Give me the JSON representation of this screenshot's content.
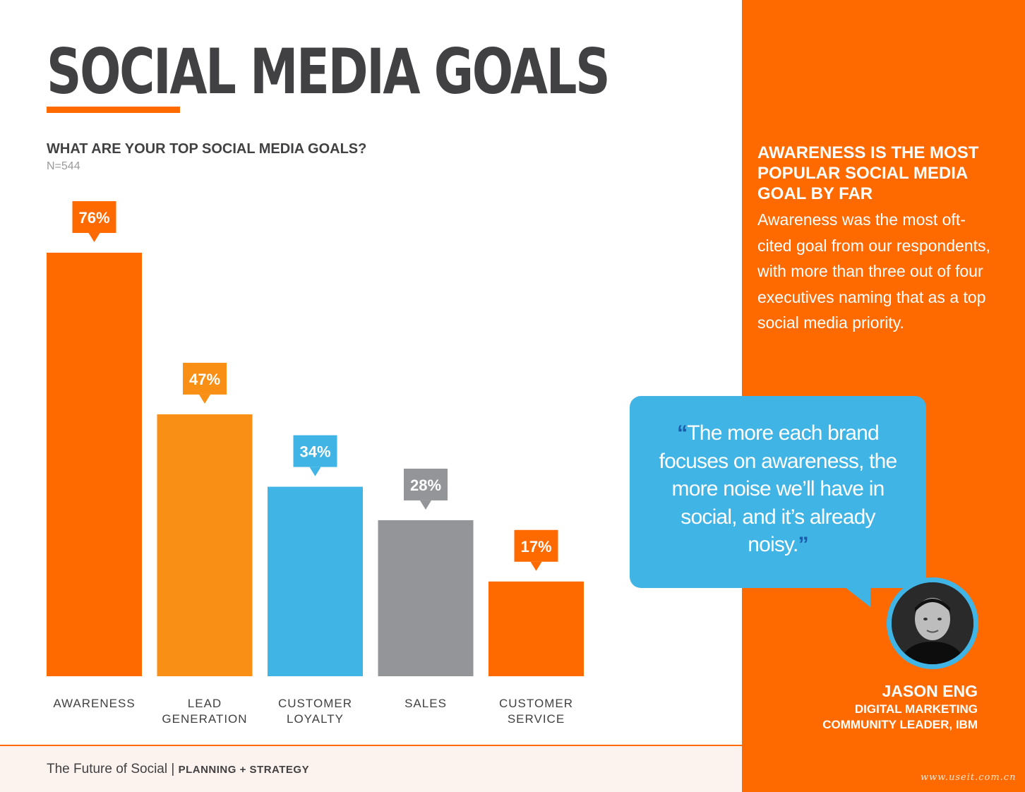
{
  "page": {
    "title": "SOCIAL MEDIA GOALS",
    "question": "WHAT ARE YOUR TOP SOCIAL MEDIA GOALS?",
    "sample_size": "N=544"
  },
  "chart_data": {
    "type": "bar",
    "categories": [
      [
        "AWARENESS"
      ],
      [
        "LEAD",
        "GENERATION"
      ],
      [
        "CUSTOMER",
        "LOYALTY"
      ],
      [
        "SALES"
      ],
      [
        "CUSTOMER",
        "SERVICE"
      ]
    ],
    "values": [
      76,
      47,
      34,
      28,
      17
    ],
    "value_labels": [
      "76%",
      "47%",
      "34%",
      "28%",
      "17%"
    ],
    "unit": "%",
    "bar_colors": [
      "#ff6a00",
      "#fa8f16",
      "#40b4e5",
      "#939598",
      "#ff6a00"
    ],
    "ylim": [
      0,
      100
    ],
    "grid": false,
    "axes_visible": false
  },
  "sidebar": {
    "heading": "AWARENESS IS THE MOST POPULAR SOCIAL MEDIA GOAL BY FAR",
    "body": "Awareness was the most oft-cited goal from our respondents, with more than three out of four executives naming that as a top social media priority.",
    "quote": {
      "open_mark": "“",
      "text": "The more each brand focuses on awareness, the more noise we’ll have in social, and it’s already noisy.",
      "close_mark": "”"
    },
    "person": {
      "name": "JASON ENG",
      "role_line1": "DIGITAL MARKETING",
      "role_line2": "COMMUNITY LEADER, IBM"
    }
  },
  "footer": {
    "publication": "The Future of Social",
    "separator": " | ",
    "section": "PLANNING + STRATEGY"
  },
  "watermark": "www.useit.com.cn",
  "colors": {
    "orange": "#ff6a00",
    "light_orange": "#fa8f16",
    "blue": "#40b4e5",
    "gray": "#939598",
    "title_gray": "#414042"
  }
}
